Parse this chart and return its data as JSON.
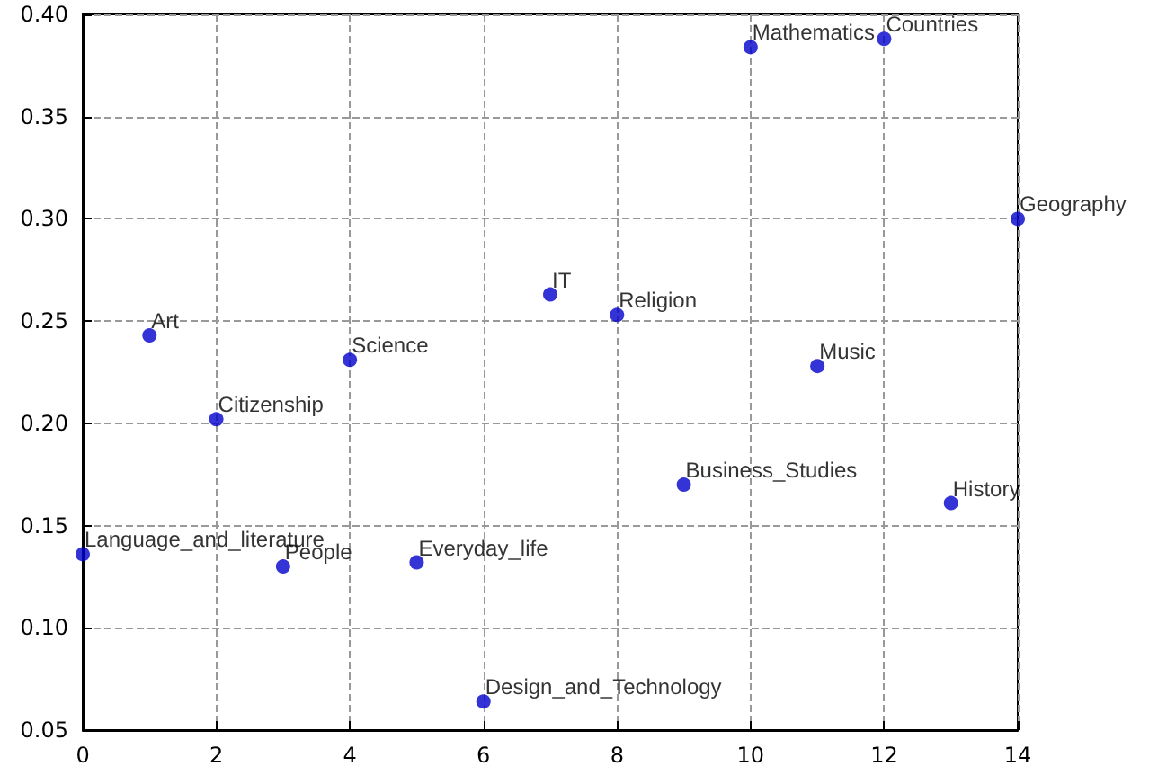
{
  "chart_data": {
    "type": "scatter",
    "x": [
      0,
      1,
      2,
      3,
      4,
      5,
      6,
      7,
      8,
      9,
      10,
      11,
      12,
      13,
      14
    ],
    "values": [
      0.136,
      0.243,
      0.202,
      0.13,
      0.231,
      0.132,
      0.064,
      0.263,
      0.253,
      0.17,
      0.384,
      0.228,
      0.388,
      0.161,
      0.3
    ],
    "color": "#0000cc",
    "marker": "circle",
    "grid": true,
    "xlim": [
      0,
      14
    ],
    "xticks": [
      0,
      2,
      4,
      6,
      8,
      10,
      12,
      14
    ],
    "ylim": [
      0.05,
      0.4
    ],
    "yticks": [
      0.05,
      {
        "value": 0.1,
        "label": "0.10"
      },
      0.15,
      {
        "value": 0.2,
        "label": "0.20"
      },
      0.25,
      {
        "value": 0.3,
        "label": "0.30"
      },
      0.35,
      {
        "value": 0.4,
        "label": "0.40"
      }
    ],
    "annotations": [
      {
        "text": "Language_and_literature",
        "x": 0,
        "y": 0.136
      },
      {
        "text": "Art",
        "x": 1,
        "y": 0.243
      },
      {
        "text": "Citizenship",
        "x": 2,
        "y": 0.202
      },
      {
        "text": "People",
        "x": 3,
        "y": 0.13
      },
      {
        "text": "Science",
        "x": 4,
        "y": 0.231
      },
      {
        "text": "Everyday_life",
        "x": 5,
        "y": 0.132
      },
      {
        "text": "Design_and_Technology",
        "x": 6,
        "y": 0.064
      },
      {
        "text": "IT",
        "x": 7,
        "y": 0.263
      },
      {
        "text": "Religion",
        "x": 8,
        "y": 0.253
      },
      {
        "text": "Business_Studies",
        "x": 9,
        "y": 0.17
      },
      {
        "text": "Mathematics",
        "x": 10,
        "y": 0.384
      },
      {
        "text": "Music",
        "x": 11,
        "y": 0.228
      },
      {
        "text": "Countries",
        "x": 12,
        "y": 0.388
      },
      {
        "text": "History",
        "x": 13,
        "y": 0.161
      },
      {
        "text": "Geography",
        "x": 14,
        "y": 0.3
      }
    ]
  }
}
